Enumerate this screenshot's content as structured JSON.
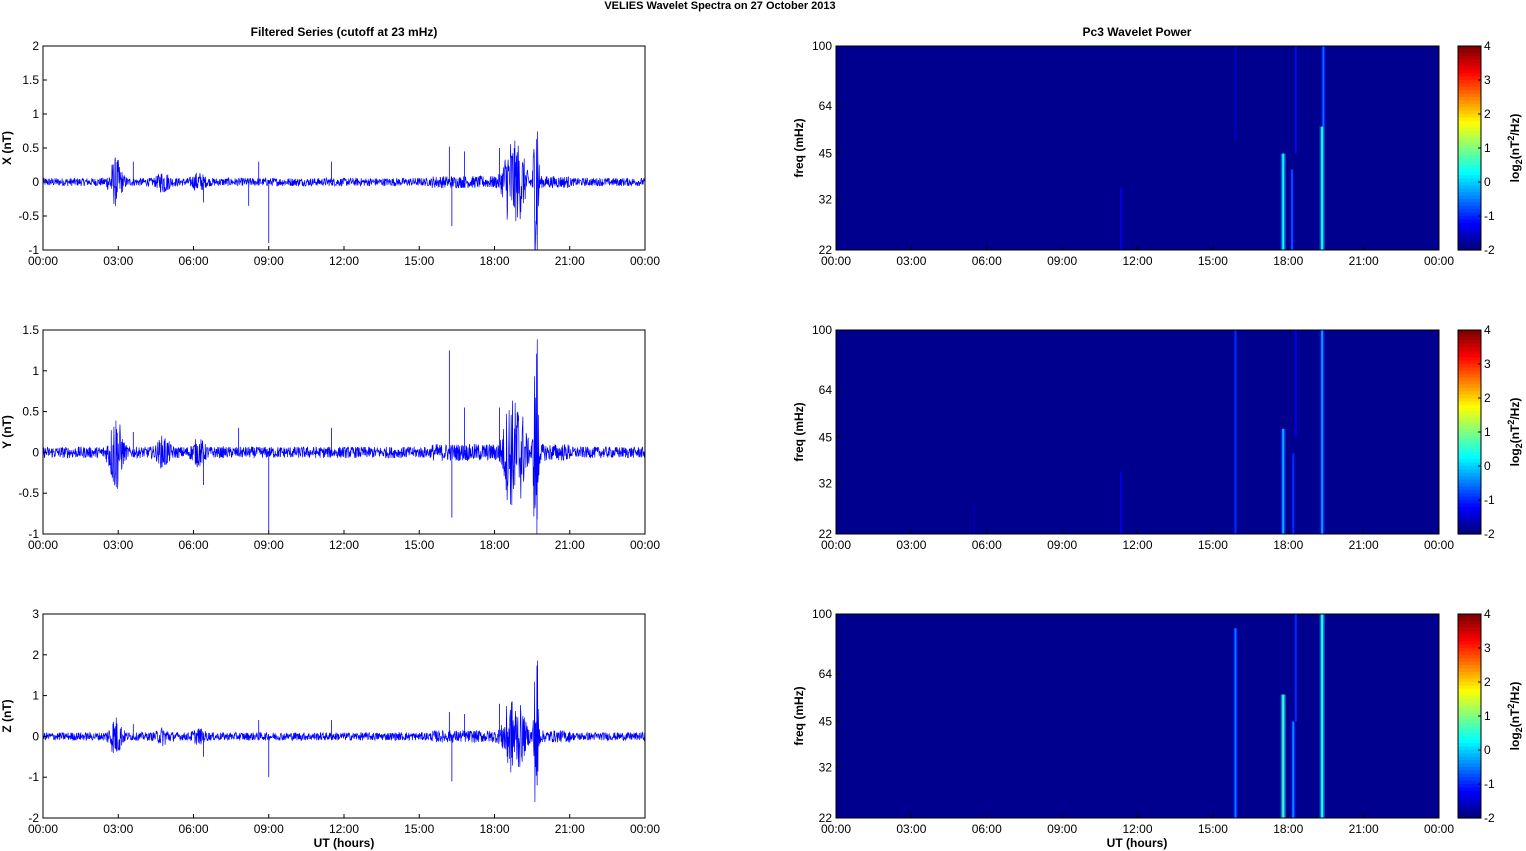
{
  "figure_title": "VELIES Wavelet Spectra on 27 October   2013",
  "left_title": "Filtered Series (cutoff at 23 mHz)",
  "right_title": "Pc3 Wavelet Power",
  "xlabel": "UT (hours)",
  "time_ticks": [
    "00:00",
    "03:00",
    "06:00",
    "09:00",
    "12:00",
    "15:00",
    "18:00",
    "21:00",
    "00:00"
  ],
  "colors": {
    "series": "#0000ff",
    "axis": "#000000",
    "background_power": "#00008f"
  },
  "chart_data": [
    {
      "type": "line",
      "ylabel": "X (nT)",
      "xlim": [
        0,
        24
      ],
      "ylim": [
        -1,
        2
      ],
      "yticks": [
        "2",
        "1.5",
        "1",
        "0.5",
        "0",
        "-0.5",
        "-1"
      ],
      "ytick_values": [
        2,
        1.5,
        1,
        0.5,
        0,
        -0.5,
        -1
      ],
      "noise_level": 0.06,
      "envelope": [
        {
          "t": 2.9,
          "amp": 0.32
        },
        {
          "t": 4.8,
          "amp": 0.12
        },
        {
          "t": 6.2,
          "amp": 0.1
        },
        {
          "t": 18.6,
          "amp": 0.55
        },
        {
          "t": 19.0,
          "amp": 0.45
        },
        {
          "t": 19.7,
          "amp": 1.55
        },
        {
          "t": 19.6,
          "amp": 0.9
        }
      ],
      "spikes": [
        {
          "t": 3.6,
          "v": 0.3
        },
        {
          "t": 6.4,
          "v": -0.3
        },
        {
          "t": 8.2,
          "v": -0.35
        },
        {
          "t": 8.6,
          "v": 0.3
        },
        {
          "t": 9.0,
          "v": -0.9
        },
        {
          "t": 11.5,
          "v": 0.3
        },
        {
          "t": 16.2,
          "v": 0.52
        },
        {
          "t": 16.3,
          "v": -0.65
        },
        {
          "t": 16.8,
          "v": 0.45
        },
        {
          "t": 18.2,
          "v": 0.5
        },
        {
          "t": 19.7,
          "v": -0.78
        }
      ]
    },
    {
      "type": "line",
      "ylabel": "Y (nT)",
      "xlim": [
        0,
        24
      ],
      "ylim": [
        -1,
        1.5
      ],
      "yticks": [
        "1.5",
        "1",
        "0.5",
        "0",
        "-0.5",
        "-1"
      ],
      "ytick_values": [
        1.5,
        1,
        0.5,
        0,
        -0.5,
        -1
      ],
      "noise_level": 0.07,
      "envelope": [
        {
          "t": 2.9,
          "amp": 0.45
        },
        {
          "t": 4.8,
          "amp": 0.15
        },
        {
          "t": 6.2,
          "amp": 0.12
        },
        {
          "t": 18.6,
          "amp": 0.55
        },
        {
          "t": 19.0,
          "amp": 0.5
        },
        {
          "t": 19.7,
          "amp": 1.42
        },
        {
          "t": 19.6,
          "amp": 0.9
        }
      ],
      "spikes": [
        {
          "t": 3.6,
          "v": 0.25
        },
        {
          "t": 6.4,
          "v": -0.4
        },
        {
          "t": 7.8,
          "v": 0.3
        },
        {
          "t": 9.0,
          "v": -0.95
        },
        {
          "t": 11.5,
          "v": 0.3
        },
        {
          "t": 16.2,
          "v": 1.25
        },
        {
          "t": 16.3,
          "v": -0.8
        },
        {
          "t": 16.8,
          "v": 0.55
        },
        {
          "t": 18.2,
          "v": 0.55
        },
        {
          "t": 19.7,
          "v": -0.82
        }
      ]
    },
    {
      "type": "line",
      "ylabel": "Z (nT)",
      "xlim": [
        0,
        24
      ],
      "ylim": [
        -2,
        3
      ],
      "yticks": [
        "3",
        "2",
        "1",
        "0",
        "-1",
        "-2"
      ],
      "ytick_values": [
        3,
        2,
        1,
        0,
        -1,
        -2
      ],
      "noise_level": 0.1,
      "envelope": [
        {
          "t": 2.9,
          "amp": 0.42
        },
        {
          "t": 4.8,
          "amp": 0.15
        },
        {
          "t": 6.2,
          "amp": 0.12
        },
        {
          "t": 18.6,
          "amp": 0.75
        },
        {
          "t": 19.0,
          "amp": 0.6
        },
        {
          "t": 19.7,
          "amp": 2.15
        },
        {
          "t": 19.6,
          "amp": 1.3
        }
      ],
      "spikes": [
        {
          "t": 3.6,
          "v": 0.3
        },
        {
          "t": 6.4,
          "v": -0.5
        },
        {
          "t": 8.6,
          "v": 0.4
        },
        {
          "t": 9.0,
          "v": -1.0
        },
        {
          "t": 11.5,
          "v": 0.4
        },
        {
          "t": 16.2,
          "v": 0.6
        },
        {
          "t": 16.3,
          "v": -1.1
        },
        {
          "t": 16.8,
          "v": 0.55
        },
        {
          "t": 18.2,
          "v": 0.8
        },
        {
          "t": 19.7,
          "v": -1.2
        }
      ]
    },
    {
      "type": "heatmap",
      "ylabel": "freq (mHz)",
      "yscale": "log",
      "ylim": [
        22,
        100
      ],
      "yticks": [
        "100",
        "64",
        "45",
        "32",
        "22"
      ],
      "ytick_values": [
        100,
        64,
        45,
        32,
        22
      ],
      "colorbar": {
        "label_base": "log",
        "label_sub": "2",
        "label_main": "(nT",
        "label_sup": "2",
        "label_tail": "/Hz)",
        "ticks": [
          "4",
          "3",
          "2",
          "1",
          "0",
          "-1",
          "-2"
        ],
        "tick_values": [
          4,
          3,
          2,
          1,
          0,
          -1,
          -2
        ],
        "range": [
          -2,
          4
        ]
      },
      "streaks": [
        {
          "t": 11.35,
          "f_low": 22,
          "f_high": 35,
          "level": -1.4
        },
        {
          "t": 15.9,
          "f_low": 50,
          "f_high": 100,
          "level": -1.5
        },
        {
          "t": 17.8,
          "f_low": 22,
          "f_high": 45,
          "level": 0.3
        },
        {
          "t": 18.15,
          "f_low": 22,
          "f_high": 40,
          "level": -0.8
        },
        {
          "t": 18.3,
          "f_low": 45,
          "f_high": 100,
          "level": -1.2
        },
        {
          "t": 19.35,
          "f_low": 22,
          "f_high": 55,
          "level": 0.4
        },
        {
          "t": 19.4,
          "f_low": 55,
          "f_high": 100,
          "level": -0.6
        }
      ]
    },
    {
      "type": "heatmap",
      "ylabel": "freq (mHz)",
      "yscale": "log",
      "ylim": [
        22,
        100
      ],
      "yticks": [
        "100",
        "64",
        "45",
        "32",
        "22"
      ],
      "ytick_values": [
        100,
        64,
        45,
        32,
        22
      ],
      "colorbar": {
        "label_base": "log",
        "label_sub": "2",
        "label_main": "(nT",
        "label_sup": "2",
        "label_tail": "/Hz)",
        "ticks": [
          "4",
          "3",
          "2",
          "1",
          "0",
          "-1",
          "-2"
        ],
        "tick_values": [
          4,
          3,
          2,
          1,
          0,
          -1,
          -2
        ],
        "range": [
          -2,
          4
        ]
      },
      "streaks": [
        {
          "t": 5.5,
          "f_low": 22,
          "f_high": 28,
          "level": -1.7
        },
        {
          "t": 11.35,
          "f_low": 22,
          "f_high": 35,
          "level": -1.4
        },
        {
          "t": 15.9,
          "f_low": 22,
          "f_high": 100,
          "level": -1.0
        },
        {
          "t": 17.8,
          "f_low": 22,
          "f_high": 48,
          "level": -0.2
        },
        {
          "t": 18.2,
          "f_low": 22,
          "f_high": 40,
          "level": -1.0
        },
        {
          "t": 18.3,
          "f_low": 45,
          "f_high": 100,
          "level": -1.3
        },
        {
          "t": 19.35,
          "f_low": 22,
          "f_high": 100,
          "level": -0.3
        }
      ]
    },
    {
      "type": "heatmap",
      "ylabel": "freq (mHz)",
      "yscale": "log",
      "ylim": [
        22,
        100
      ],
      "yticks": [
        "100",
        "64",
        "45",
        "32",
        "22"
      ],
      "ytick_values": [
        100,
        64,
        45,
        32,
        22
      ],
      "colorbar": {
        "label_base": "log",
        "label_sub": "2",
        "label_main": "(nT",
        "label_sup": "2",
        "label_tail": "/Hz)",
        "ticks": [
          "4",
          "3",
          "2",
          "1",
          "0",
          "-1",
          "-2"
        ],
        "tick_values": [
          4,
          3,
          2,
          1,
          0,
          -1,
          -2
        ],
        "range": [
          -2,
          4
        ]
      },
      "streaks": [
        {
          "t": 13.4,
          "f_low": 22,
          "f_high": 26,
          "level": -1.8
        },
        {
          "t": 15.9,
          "f_low": 22,
          "f_high": 90,
          "level": -0.5
        },
        {
          "t": 17.8,
          "f_low": 22,
          "f_high": 55,
          "level": 0.6
        },
        {
          "t": 18.2,
          "f_low": 22,
          "f_high": 45,
          "level": -0.4
        },
        {
          "t": 18.3,
          "f_low": 45,
          "f_high": 100,
          "level": -1.0
        },
        {
          "t": 19.35,
          "f_low": 22,
          "f_high": 100,
          "level": 0.5
        }
      ]
    }
  ]
}
